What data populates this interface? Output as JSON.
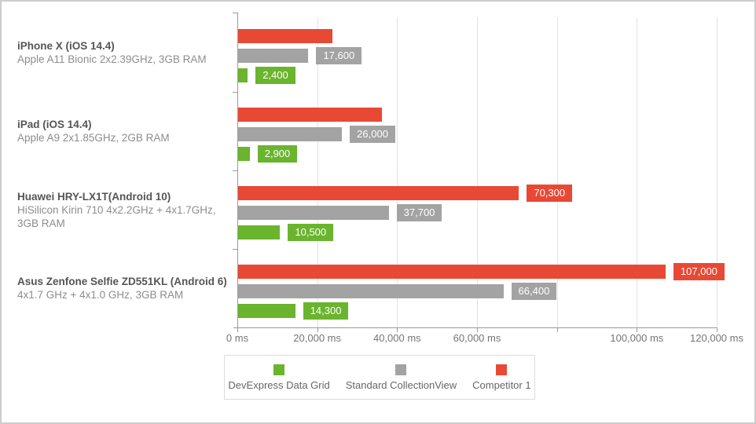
{
  "frame": {
    "background": "#ffffff",
    "border_color": "#cccccc"
  },
  "chart_data": {
    "type": "bar",
    "orientation": "horizontal",
    "unit": "ms",
    "xlim": [
      0,
      120000
    ],
    "grid": true,
    "legend_position": "bottom",
    "xticks": [
      {
        "value": 0,
        "label": "0 ms"
      },
      {
        "value": 20000,
        "label": "20,000 ms"
      },
      {
        "value": 40000,
        "label": "40,000 ms"
      },
      {
        "value": 60000,
        "label": "60,000 ms"
      },
      {
        "value": 80000,
        "label": ""
      },
      {
        "value": 100000,
        "label": "100,000 ms"
      },
      {
        "value": 120000,
        "label": "120,000 ms"
      }
    ],
    "categories": [
      {
        "name": "iPhone X (iOS 14.4)",
        "spec": "Apple A11 Bionic 2x2.39GHz, 3GB RAM"
      },
      {
        "name": "iPad (iOS 14.4)",
        "spec": "Apple A9 2x1.85GHz, 2GB RAM"
      },
      {
        "name": "Huawei HRY-LX1T(Android 10)",
        "spec": "HiSilicon Kirin 710 4x2.2GHz + 4x1.7GHz, 3GB RAM"
      },
      {
        "name": "Asus Zenfone Selfie ZD551KL (Android 6)",
        "spec": "4x1.7 GHz + 4x1.0 GHz, 3GB RAM"
      }
    ],
    "series": [
      {
        "name": "Competitor 1",
        "color": "#e84935",
        "values": [
          23600,
          36000,
          70300,
          107000
        ],
        "value_labels": [
          "",
          "",
          "70,300",
          "107,000"
        ]
      },
      {
        "name": "Standard CollectionView",
        "color": "#a3a3a3",
        "values": [
          17600,
          26000,
          37700,
          66400
        ],
        "value_labels": [
          "17,600",
          "26,000",
          "37,700",
          "66,400"
        ]
      },
      {
        "name": "DevExpress Data Grid",
        "color": "#6ab42e",
        "values": [
          2400,
          2900,
          10500,
          14300
        ],
        "value_labels": [
          "2,400",
          "2,900",
          "10,500",
          "14,300"
        ]
      }
    ],
    "legend": [
      {
        "label": "DevExpress Data Grid",
        "color": "#6ab42e"
      },
      {
        "label": "Standard CollectionView",
        "color": "#a3a3a3"
      },
      {
        "label": "Competitor 1",
        "color": "#e84935"
      }
    ]
  },
  "layout_colors": {
    "gridline": "#e2e2e2",
    "axis": "#9a9a9a",
    "category_name_text": "#555555",
    "category_spec_text": "#8d8d8d",
    "axis_label_text": "#757575",
    "legend_text": "#666666",
    "value_label_text": "#ffffff"
  }
}
